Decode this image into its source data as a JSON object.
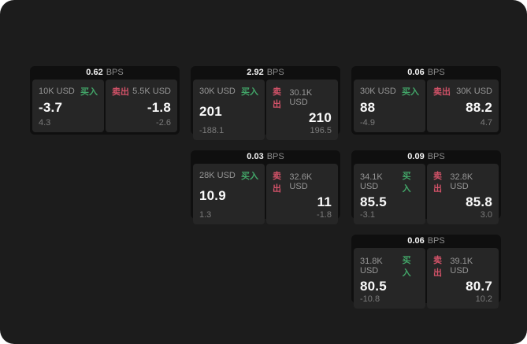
{
  "colors": {
    "window_bg": "#1c1c1c",
    "card_bg": "#0f0f0f",
    "panel_bg": "#262626",
    "buy_green": "#42a568",
    "sell_red": "#d25268"
  },
  "labels": {
    "bps": "BPS",
    "buy": "买入",
    "sell": "卖出"
  },
  "cards": [
    {
      "row": 1,
      "col": 1,
      "bps": "0.62",
      "buy": {
        "amount": "10K USD",
        "value": "-3.7",
        "delta": "4.3"
      },
      "sell": {
        "amount": "5.5K USD",
        "value": "-1.8",
        "delta": "-2.6"
      }
    },
    {
      "row": 1,
      "col": 2,
      "bps": "2.92",
      "buy": {
        "amount": "30K USD",
        "value": "201",
        "delta": "-188.1"
      },
      "sell": {
        "amount": "30.1K USD",
        "value": "210",
        "delta": "196.5"
      }
    },
    {
      "row": 1,
      "col": 3,
      "bps": "0.06",
      "buy": {
        "amount": "30K USD",
        "value": "88",
        "delta": "-4.9"
      },
      "sell": {
        "amount": "30K USD",
        "value": "88.2",
        "delta": "4.7"
      }
    },
    {
      "row": 2,
      "col": 2,
      "bps": "0.03",
      "buy": {
        "amount": "28K USD",
        "value": "10.9",
        "delta": "1.3"
      },
      "sell": {
        "amount": "32.6K USD",
        "value": "11",
        "delta": "-1.8"
      }
    },
    {
      "row": 2,
      "col": 3,
      "bps": "0.09",
      "buy": {
        "amount": "34.1K USD",
        "value": "85.5",
        "delta": "-3.1"
      },
      "sell": {
        "amount": "32.8K USD",
        "value": "85.8",
        "delta": "3.0"
      }
    },
    {
      "row": 3,
      "col": 3,
      "bps": "0.06",
      "buy": {
        "amount": "31.8K USD",
        "value": "80.5",
        "delta": "-10.8"
      },
      "sell": {
        "amount": "39.1K USD",
        "value": "80.7",
        "delta": "10.2"
      }
    }
  ]
}
